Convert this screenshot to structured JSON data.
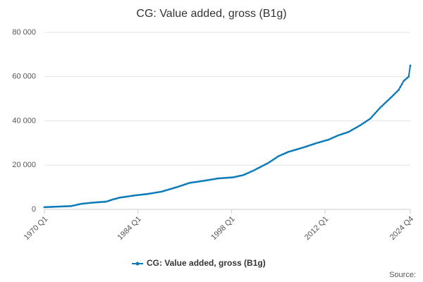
{
  "chart_data": {
    "type": "line",
    "title": "CG: Value added, gross (B1g)",
    "source": "Source:",
    "categories": [
      "1970 Q1",
      null,
      null,
      null,
      null,
      null,
      null,
      null,
      null,
      null,
      null,
      null,
      null,
      null,
      null,
      null,
      null,
      null,
      null,
      null,
      null,
      null,
      null,
      null,
      null,
      null,
      null,
      null,
      null,
      null,
      null,
      null,
      null,
      null,
      null,
      null,
      null,
      null,
      null,
      null,
      null,
      null,
      null,
      null,
      null,
      null,
      null,
      null,
      null,
      null,
      null,
      null,
      null,
      null,
      null,
      null,
      "1984 Q1",
      null,
      null,
      null,
      null,
      null,
      null,
      null,
      null,
      null,
      null,
      null,
      null,
      null,
      null,
      null,
      null,
      null,
      null,
      null,
      null,
      null,
      null,
      null,
      null,
      null,
      null,
      null,
      null,
      null,
      null,
      null,
      null,
      null,
      null,
      null,
      null,
      null,
      null,
      null,
      null,
      null,
      null,
      null,
      null,
      null,
      null,
      null,
      null,
      null,
      null,
      null,
      null,
      null,
      null,
      null,
      "1998 Q1",
      null,
      null,
      null,
      null,
      null,
      null,
      null,
      null,
      null,
      null,
      null,
      null,
      null,
      null,
      null,
      null,
      null,
      null,
      null,
      null,
      null,
      null,
      null,
      null,
      null,
      null,
      null,
      null,
      null,
      null,
      null,
      null,
      null,
      null,
      null,
      null,
      null,
      null,
      null,
      null,
      null,
      null,
      null,
      null,
      null,
      null,
      null,
      null,
      null,
      null,
      null,
      null,
      null,
      null,
      null,
      "2012 Q1",
      null,
      null,
      null,
      null,
      null,
      null,
      null,
      null,
      null,
      null,
      null,
      null,
      null,
      null,
      null,
      null,
      null,
      null,
      null,
      null,
      null,
      null,
      null,
      null,
      null,
      null,
      null,
      null,
      null,
      null,
      null,
      null,
      null,
      null,
      null,
      null,
      null,
      null,
      null,
      null,
      null,
      null,
      null,
      null,
      null,
      null,
      null,
      null,
      null,
      null,
      "2024 Q4"
    ],
    "series": [
      {
        "name": "CG: Value added, gross (B1g)",
        "color": "#0b7ab8",
        "values": [
          1000,
          1030,
          1060,
          1090,
          1130,
          1160,
          1190,
          1220,
          1250,
          1280,
          1310,
          1340,
          1380,
          1410,
          1440,
          1470,
          1500,
          1670,
          1830,
          2000,
          2170,
          2330,
          2500,
          2580,
          2670,
          2750,
          2830,
          2920,
          3000,
          3060,
          3110,
          3170,
          3220,
          3280,
          3330,
          3390,
          3440,
          3500,
          3750,
          4000,
          4250,
          4500,
          4700,
          4900,
          5100,
          5300,
          5410,
          5520,
          5630,
          5740,
          5860,
          5970,
          6080,
          6190,
          6300,
          6390,
          6480,
          6560,
          6650,
          6740,
          6830,
          6910,
          7000,
          7130,
          7250,
          7380,
          7500,
          7630,
          7750,
          7880,
          8000,
          8220,
          8440,
          8670,
          8890,
          9110,
          9330,
          9560,
          9780,
          10000,
          10250,
          10500,
          10750,
          11000,
          11250,
          11500,
          11750,
          12000,
          12110,
          12220,
          12330,
          12440,
          12560,
          12670,
          12780,
          12890,
          13000,
          13130,
          13250,
          13380,
          13500,
          13630,
          13750,
          13880,
          14000,
          14060,
          14110,
          14170,
          14220,
          14280,
          14330,
          14390,
          14440,
          14500,
          14670,
          14830,
          15000,
          15170,
          15330,
          15500,
          15830,
          16170,
          16500,
          16830,
          17170,
          17500,
          17890,
          18280,
          18670,
          19060,
          19440,
          19830,
          20220,
          20610,
          21000,
          21500,
          22000,
          22500,
          23000,
          23500,
          24000,
          24330,
          24670,
          25000,
          25330,
          25670,
          26000,
          26220,
          26440,
          26670,
          26890,
          27110,
          27330,
          27560,
          27780,
          28000,
          28250,
          28500,
          28750,
          29000,
          29250,
          29500,
          29750,
          30000,
          30210,
          30430,
          30640,
          30860,
          31070,
          31290,
          31500,
          31830,
          32170,
          32500,
          32830,
          33170,
          33500,
          33750,
          34000,
          34250,
          34500,
          34750,
          35000,
          35430,
          35860,
          36290,
          36710,
          37140,
          37570,
          38000,
          38500,
          39000,
          39500,
          40000,
          40500,
          41000,
          41830,
          42670,
          43500,
          44330,
          45170,
          46000,
          46710,
          47430,
          48140,
          48860,
          49570,
          50290,
          51000,
          51750,
          52500,
          53250,
          54000,
          55330,
          56670,
          58000,
          58670,
          59330,
          60000,
          65000
        ]
      }
    ],
    "ylim": [
      0,
      80000
    ],
    "yticks": [
      0,
      {
        "value": 20000,
        "label": "20 000"
      },
      {
        "value": 40000,
        "label": "40 000"
      },
      {
        "value": 60000,
        "label": "60 000"
      },
      {
        "value": 80000,
        "label": "80 000"
      }
    ],
    "grid": true
  }
}
